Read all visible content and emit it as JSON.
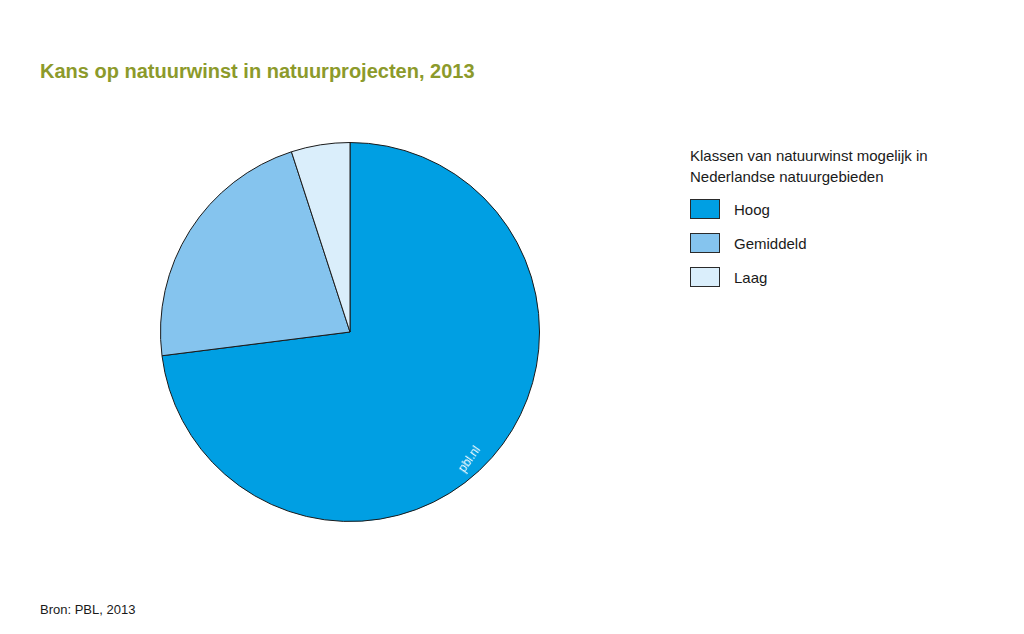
{
  "chart_data": {
    "type": "pie",
    "title": "Kans op natuurwinst in natuurprojecten, 2013",
    "legend_title": "Klassen van natuurwinst mogelijk in Nederlandse natuurgebieden",
    "categories": [
      "Hoog",
      "Gemiddeld",
      "Laag"
    ],
    "values": [
      73,
      22,
      5
    ],
    "colors": [
      "#009fe3",
      "#85c4ee",
      "#daeefb"
    ],
    "legend": "right",
    "source": "Bron: PBL, 2013",
    "watermark": "pbl.nl"
  }
}
